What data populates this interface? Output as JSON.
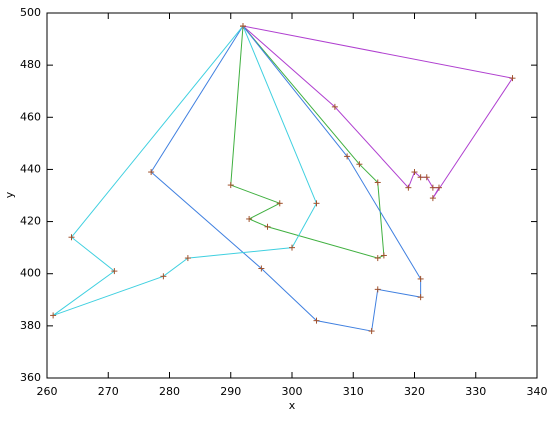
{
  "chart_data": {
    "type": "line",
    "xlabel": "x",
    "ylabel": "y",
    "xlim": [
      260,
      340
    ],
    "ylim": [
      360,
      500
    ],
    "xticks": [
      260,
      270,
      280,
      290,
      300,
      310,
      320,
      330,
      340
    ],
    "yticks": [
      360,
      380,
      400,
      420,
      440,
      460,
      480,
      500
    ],
    "marker_color": "#a0522d",
    "series": [
      {
        "color": "#b040d0",
        "x": [
          292,
          336,
          323,
          324,
          323,
          322,
          321,
          320,
          319,
          307,
          292
        ],
        "values": [
          495,
          475,
          429,
          433,
          433,
          437,
          437,
          439,
          433,
          464,
          495
        ]
      },
      {
        "color": "#40b040",
        "x": [
          292,
          290,
          298,
          293,
          296,
          314,
          315,
          314,
          311,
          292
        ],
        "values": [
          495,
          434,
          427,
          421,
          418,
          406,
          407,
          435,
          442,
          495
        ]
      },
      {
        "color": "#4080e0",
        "x": [
          292,
          277,
          295,
          304,
          313,
          314,
          321,
          321,
          309,
          292
        ],
        "values": [
          495,
          439,
          402,
          382,
          378,
          394,
          391,
          398,
          445,
          495
        ]
      },
      {
        "color": "#40d0e0",
        "x": [
          292,
          304,
          300,
          283,
          279,
          261,
          271,
          264,
          292
        ],
        "values": [
          495,
          427,
          410,
          406,
          399,
          384,
          401,
          414,
          495
        ]
      }
    ]
  }
}
